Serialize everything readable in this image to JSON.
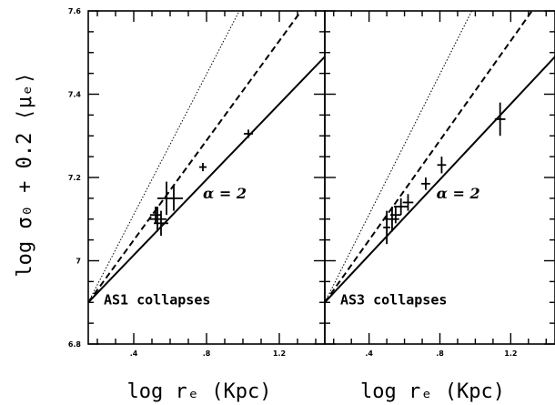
{
  "chart_data": {
    "type": "scatter",
    "ylabel": "log σ₀ + 0.2 ⟨μₑ⟩",
    "ylim": [
      6.8,
      7.6
    ],
    "yticks": [
      6.8,
      7,
      7.2,
      7.4,
      7.6
    ],
    "ytick_labels": [
      "6.8",
      "7",
      "7.2",
      "7.4",
      "7.6"
    ],
    "shared_y": true,
    "panels": [
      {
        "annotation": "AS1 collapses",
        "alpha_label": "α = 2",
        "xlabel": "log rₑ (Kpc)",
        "xlim": [
          0.15,
          1.45
        ],
        "xticks": [
          0.4,
          0.8,
          1.2
        ],
        "xtick_labels": [
          ".4",
          ".8",
          "1.2"
        ],
        "lines": [
          {
            "style": "solid",
            "points": [
              [
                0.15,
                6.9
              ],
              [
                1.45,
                7.49
              ]
            ]
          },
          {
            "style": "dashed",
            "points": [
              [
                0.15,
                6.9
              ],
              [
                1.32,
                7.6
              ]
            ]
          },
          {
            "style": "dotted",
            "points": [
              [
                0.15,
                6.9
              ],
              [
                0.98,
                7.6
              ]
            ]
          }
        ],
        "points": [
          {
            "x": 0.53,
            "y": 7.1,
            "xerr": 0.05,
            "yerr": 0.03
          },
          {
            "x": 0.55,
            "y": 7.09,
            "xerr": 0.04,
            "yerr": 0.03
          },
          {
            "x": 0.52,
            "y": 7.11,
            "xerr": 0.03,
            "yerr": 0.02
          },
          {
            "x": 0.58,
            "y": 7.15,
            "xerr": 0.05,
            "yerr": 0.04
          },
          {
            "x": 0.62,
            "y": 7.15,
            "xerr": 0.05,
            "yerr": 0.03
          },
          {
            "x": 0.78,
            "y": 7.225,
            "xerr": 0.02,
            "yerr": 0.01
          },
          {
            "x": 1.03,
            "y": 7.305,
            "xerr": 0.025,
            "yerr": 0.01
          }
        ]
      },
      {
        "annotation": "AS3 collapses",
        "alpha_label": "α = 2",
        "xlabel": "log rₑ (Kpc)",
        "xlim": [
          0.15,
          1.45
        ],
        "xticks": [
          0.4,
          0.8,
          1.2
        ],
        "xtick_labels": [
          ".4",
          ".8",
          "1.2"
        ],
        "lines": [
          {
            "style": "solid",
            "points": [
              [
                0.15,
                6.9
              ],
              [
                1.45,
                7.49
              ]
            ]
          },
          {
            "style": "dashed",
            "points": [
              [
                0.15,
                6.9
              ],
              [
                1.32,
                7.6
              ]
            ]
          },
          {
            "style": "dotted",
            "points": [
              [
                0.15,
                6.9
              ],
              [
                0.98,
                7.6
              ]
            ]
          }
        ],
        "points": [
          {
            "x": 0.5,
            "y": 7.08,
            "xerr": 0.02,
            "yerr": 0.04
          },
          {
            "x": 0.53,
            "y": 7.1,
            "xerr": 0.04,
            "yerr": 0.03
          },
          {
            "x": 0.55,
            "y": 7.11,
            "xerr": 0.03,
            "yerr": 0.02
          },
          {
            "x": 0.58,
            "y": 7.13,
            "xerr": 0.04,
            "yerr": 0.02
          },
          {
            "x": 0.62,
            "y": 7.14,
            "xerr": 0.03,
            "yerr": 0.02
          },
          {
            "x": 0.72,
            "y": 7.185,
            "xerr": 0.025,
            "yerr": 0.015
          },
          {
            "x": 0.81,
            "y": 7.23,
            "xerr": 0.025,
            "yerr": 0.02
          },
          {
            "x": 1.14,
            "y": 7.34,
            "xerr": 0.03,
            "yerr": 0.04
          }
        ]
      }
    ]
  }
}
